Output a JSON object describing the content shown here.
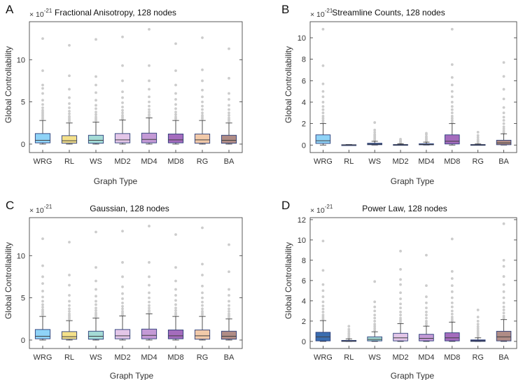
{
  "figure": {
    "median_color": "#404040",
    "outlier_color": "#cccccc",
    "whisker_color": "#404040"
  },
  "chart_data": [
    {
      "panel": "A",
      "type": "box",
      "title": "Fractional Anisotropy, 128 nodes",
      "xlabel": "Graph Type",
      "ylabel": "Global Controllability",
      "exponent": "× 10",
      "exponent_power": "-21",
      "ylim": [
        -1,
        14.5
      ],
      "yticks": [
        0,
        5,
        10
      ],
      "categories": [
        "WRG",
        "RL",
        "WS",
        "MD2",
        "MD4",
        "MD8",
        "RG",
        "BA"
      ],
      "colors": [
        "#8fd3f7",
        "#f4e08a",
        "#a4dbd6",
        "#e3c6e8",
        "#c49ad6",
        "#a46cbd",
        "#f1c9a9",
        "#b08c86"
      ],
      "boxes": [
        {
          "q1": 0.15,
          "median": 0.45,
          "q3": 1.25,
          "wlo": 0,
          "whi": 2.8
        },
        {
          "q1": 0.1,
          "median": 0.4,
          "q3": 1.0,
          "wlo": 0,
          "whi": 2.5
        },
        {
          "q1": 0.1,
          "median": 0.45,
          "q3": 1.05,
          "wlo": 0,
          "whi": 2.6
        },
        {
          "q1": 0.15,
          "median": 0.5,
          "q3": 1.25,
          "wlo": 0,
          "whi": 2.85
        },
        {
          "q1": 0.15,
          "median": 0.55,
          "q3": 1.3,
          "wlo": 0,
          "whi": 3.1
        },
        {
          "q1": 0.15,
          "median": 0.5,
          "q3": 1.2,
          "wlo": 0,
          "whi": 2.8
        },
        {
          "q1": 0.1,
          "median": 0.5,
          "q3": 1.2,
          "wlo": 0,
          "whi": 2.8
        },
        {
          "q1": 0.1,
          "median": 0.45,
          "q3": 1.05,
          "wlo": 0,
          "whi": 2.5
        }
      ],
      "outliers": [
        [
          3.0,
          3.2,
          3.4,
          3.6,
          3.8,
          4.0,
          4.3,
          4.7,
          5.2,
          6.0,
          6.6,
          7.0,
          8.7,
          12.5
        ],
        [
          2.7,
          2.9,
          3.1,
          3.3,
          3.6,
          3.9,
          4.3,
          4.8,
          5.5,
          6.5,
          8.1,
          11.7
        ],
        [
          2.8,
          3.0,
          3.2,
          3.5,
          3.8,
          4.2,
          4.6,
          5.2,
          6.1,
          7.0,
          8.0,
          12.4
        ],
        [
          3.0,
          3.2,
          3.4,
          3.7,
          4.0,
          4.4,
          4.9,
          5.5,
          6.2,
          7.5,
          9.3,
          12.7
        ],
        [
          3.3,
          3.5,
          3.8,
          4.1,
          4.5,
          5.0,
          5.6,
          6.5,
          7.5,
          9.3,
          13.6
        ],
        [
          3.0,
          3.2,
          3.5,
          3.8,
          4.2,
          4.7,
          5.3,
          6.0,
          7.0,
          8.7,
          11.9
        ],
        [
          3.0,
          3.2,
          3.4,
          3.7,
          4.1,
          4.5,
          5.0,
          5.6,
          6.4,
          7.5,
          8.8,
          12.6
        ],
        [
          2.7,
          2.9,
          3.1,
          3.4,
          3.7,
          4.1,
          4.6,
          5.3,
          6.0,
          7.8,
          11.3
        ]
      ]
    },
    {
      "panel": "B",
      "type": "box",
      "title": "Streamline Counts, 128 nodes",
      "xlabel": "Graph Type",
      "ylabel": "Global Controllability",
      "exponent": "× 10",
      "exponent_power": "-21",
      "ylim": [
        -0.7,
        11.5
      ],
      "yticks": [
        0,
        2,
        4,
        6,
        8,
        10
      ],
      "categories": [
        "WRG",
        "RL",
        "WS",
        "MD2",
        "MD4",
        "MD8",
        "RG",
        "BA"
      ],
      "colors": [
        "#8fd3f7",
        "#2d3b8c",
        "#3a6db0",
        "#2d3b8c",
        "#3a6db0",
        "#a46cbd",
        "#2d3b8c",
        "#b08c86"
      ],
      "boxes": [
        {
          "q1": 0.15,
          "median": 0.4,
          "q3": 0.95,
          "wlo": 0,
          "whi": 2.0
        },
        {
          "q1": 0.0,
          "median": 0.01,
          "q3": 0.03,
          "wlo": 0,
          "whi": 0.05
        },
        {
          "q1": 0.03,
          "median": 0.08,
          "q3": 0.17,
          "wlo": 0,
          "whi": 0.35
        },
        {
          "q1": 0.0,
          "median": 0.02,
          "q3": 0.05,
          "wlo": 0,
          "whi": 0.12
        },
        {
          "q1": 0.02,
          "median": 0.05,
          "q3": 0.12,
          "wlo": 0,
          "whi": 0.27
        },
        {
          "q1": 0.1,
          "median": 0.35,
          "q3": 0.95,
          "wlo": 0,
          "whi": 2.0
        },
        {
          "q1": 0.0,
          "median": 0.02,
          "q3": 0.05,
          "wlo": 0,
          "whi": 0.1
        },
        {
          "q1": 0.03,
          "median": 0.2,
          "q3": 0.45,
          "wlo": 0,
          "whi": 1.05
        }
      ],
      "outliers": [
        [
          2.1,
          2.3,
          2.5,
          2.7,
          3.0,
          3.3,
          3.6,
          4.0,
          4.5,
          5.0,
          5.7,
          7.4,
          10.8
        ],
        [],
        [
          0.4,
          0.5,
          0.6,
          0.7,
          0.8,
          0.9,
          1.0,
          1.2,
          1.4,
          2.1
        ],
        [
          0.15,
          0.2,
          0.25,
          0.3,
          0.35,
          0.45,
          0.55
        ],
        [
          0.3,
          0.4,
          0.5,
          0.6,
          0.7,
          0.8,
          1.0,
          1.1
        ],
        [
          2.1,
          2.3,
          2.5,
          2.7,
          3.0,
          3.3,
          3.6,
          4.0,
          4.5,
          5.0,
          5.6,
          6.3,
          7.5,
          10.8
        ],
        [
          0.15,
          0.25,
          0.35,
          0.5,
          0.7,
          0.9,
          1.2
        ],
        [
          1.1,
          1.3,
          1.5,
          1.7,
          2.0,
          2.3,
          2.6,
          3.0,
          3.5,
          4.3,
          5.2,
          6.4,
          7.7
        ]
      ]
    },
    {
      "panel": "C",
      "type": "box",
      "title": "Gaussian, 128 nodes",
      "xlabel": "Graph Type",
      "ylabel": "Global Controllability",
      "exponent": "× 10",
      "exponent_power": "-21",
      "ylim": [
        -1,
        14.5
      ],
      "yticks": [
        0,
        5,
        10
      ],
      "categories": [
        "WRG",
        "RL",
        "WS",
        "MD2",
        "MD4",
        "MD8",
        "RG",
        "BA"
      ],
      "colors": [
        "#8fd3f7",
        "#f4e08a",
        "#a4dbd6",
        "#e3c6e8",
        "#c49ad6",
        "#a46cbd",
        "#f1c9a9",
        "#b08c86"
      ],
      "boxes": [
        {
          "q1": 0.15,
          "median": 0.45,
          "q3": 1.25,
          "wlo": 0,
          "whi": 2.8
        },
        {
          "q1": 0.1,
          "median": 0.4,
          "q3": 1.0,
          "wlo": 0,
          "whi": 2.3
        },
        {
          "q1": 0.1,
          "median": 0.45,
          "q3": 1.05,
          "wlo": 0,
          "whi": 2.6
        },
        {
          "q1": 0.15,
          "median": 0.5,
          "q3": 1.25,
          "wlo": 0,
          "whi": 2.85
        },
        {
          "q1": 0.15,
          "median": 0.55,
          "q3": 1.3,
          "wlo": 0,
          "whi": 3.1
        },
        {
          "q1": 0.15,
          "median": 0.5,
          "q3": 1.2,
          "wlo": 0,
          "whi": 2.8
        },
        {
          "q1": 0.1,
          "median": 0.5,
          "q3": 1.2,
          "wlo": 0,
          "whi": 2.8
        },
        {
          "q1": 0.1,
          "median": 0.45,
          "q3": 1.05,
          "wlo": 0,
          "whi": 2.5
        }
      ],
      "outliers": [
        [
          3.0,
          3.2,
          3.4,
          3.6,
          3.9,
          4.2,
          4.6,
          5.1,
          5.8,
          6.7,
          7.5,
          8.8,
          12.0
        ],
        [
          2.5,
          2.7,
          2.9,
          3.1,
          3.4,
          3.7,
          4.1,
          4.6,
          5.3,
          6.5,
          7.7,
          11.6
        ],
        [
          2.8,
          3.0,
          3.2,
          3.5,
          3.8,
          4.2,
          4.6,
          5.2,
          6.0,
          7.0,
          8.6,
          12.8
        ],
        [
          3.0,
          3.2,
          3.4,
          3.7,
          4.0,
          4.4,
          4.9,
          5.5,
          6.3,
          7.5,
          9.2,
          12.9
        ],
        [
          3.3,
          3.5,
          3.8,
          4.1,
          4.5,
          5.0,
          5.6,
          6.5,
          7.5,
          9.2,
          13.5
        ],
        [
          3.0,
          3.2,
          3.5,
          3.8,
          4.2,
          4.7,
          5.3,
          6.0,
          7.0,
          8.6,
          12.5
        ],
        [
          3.0,
          3.2,
          3.4,
          3.7,
          4.1,
          4.5,
          5.0,
          5.6,
          6.4,
          7.7,
          9.0,
          13.3
        ],
        [
          2.7,
          2.9,
          3.1,
          3.4,
          3.7,
          4.1,
          4.6,
          5.3,
          6.0,
          8.1,
          11.3
        ]
      ]
    },
    {
      "panel": "D",
      "type": "box",
      "title": "Power Law, 128 nodes",
      "xlabel": "Graph Type",
      "ylabel": "Global Controllability",
      "exponent": "× 10",
      "exponent_power": "-21",
      "ylim": [
        -0.7,
        12.2
      ],
      "yticks": [
        0,
        2,
        4,
        6,
        8,
        10,
        12
      ],
      "categories": [
        "WRG",
        "RL",
        "WS",
        "MD2",
        "MD4",
        "MD8",
        "RG",
        "BA"
      ],
      "colors": [
        "#3a6db0",
        "#2d3b8c",
        "#a4dbd6",
        "#e3c6e8",
        "#c49ad6",
        "#a46cbd",
        "#2d3b8c",
        "#b08c86"
      ],
      "boxes": [
        {
          "q1": 0.05,
          "median": 0.45,
          "q3": 0.9,
          "wlo": 0,
          "whi": 2.05
        },
        {
          "q1": 0.0,
          "median": 0.03,
          "q3": 0.1,
          "wlo": 0,
          "whi": 0.25
        },
        {
          "q1": 0.05,
          "median": 0.2,
          "q3": 0.45,
          "wlo": 0,
          "whi": 0.95
        },
        {
          "q1": 0.05,
          "median": 0.35,
          "q3": 0.8,
          "wlo": 0,
          "whi": 1.75
        },
        {
          "q1": 0.05,
          "median": 0.3,
          "q3": 0.7,
          "wlo": 0,
          "whi": 1.5
        },
        {
          "q1": 0.05,
          "median": 0.35,
          "q3": 0.85,
          "wlo": 0,
          "whi": 1.9
        },
        {
          "q1": 0.0,
          "median": 0.05,
          "q3": 0.15,
          "wlo": 0,
          "whi": 0.35
        },
        {
          "q1": 0.05,
          "median": 0.45,
          "q3": 1.0,
          "wlo": 0,
          "whi": 2.15
        }
      ],
      "outliers": [
        [
          2.2,
          2.4,
          2.6,
          2.9,
          3.2,
          3.5,
          3.9,
          4.4,
          5.0,
          5.6,
          7.0,
          9.9
        ],
        [
          0.35,
          0.5,
          0.65,
          0.8,
          1.0,
          1.2,
          1.5
        ],
        [
          1.1,
          1.3,
          1.5,
          1.7,
          2.0,
          2.3,
          2.6,
          3.0,
          3.4,
          3.9,
          5.9
        ],
        [
          1.9,
          2.1,
          2.3,
          2.6,
          2.9,
          3.3,
          3.7,
          4.2,
          4.8,
          5.6,
          6.1,
          7.1,
          8.9
        ],
        [
          1.6,
          1.8,
          2.0,
          2.3,
          2.6,
          2.9,
          3.3,
          3.8,
          4.4,
          5.5,
          8.5
        ],
        [
          2.0,
          2.2,
          2.4,
          2.7,
          3.0,
          3.4,
          3.8,
          4.3,
          4.9,
          5.5,
          6.2,
          6.9,
          10.1
        ],
        [
          0.45,
          0.6,
          0.75,
          0.9,
          1.05,
          1.25,
          1.45,
          1.7,
          2.0,
          2.4,
          3.1
        ],
        [
          2.3,
          2.5,
          2.8,
          3.1,
          3.4,
          3.8,
          4.3,
          4.9,
          5.6,
          6.4,
          7.4,
          8.0,
          11.6
        ]
      ]
    }
  ]
}
